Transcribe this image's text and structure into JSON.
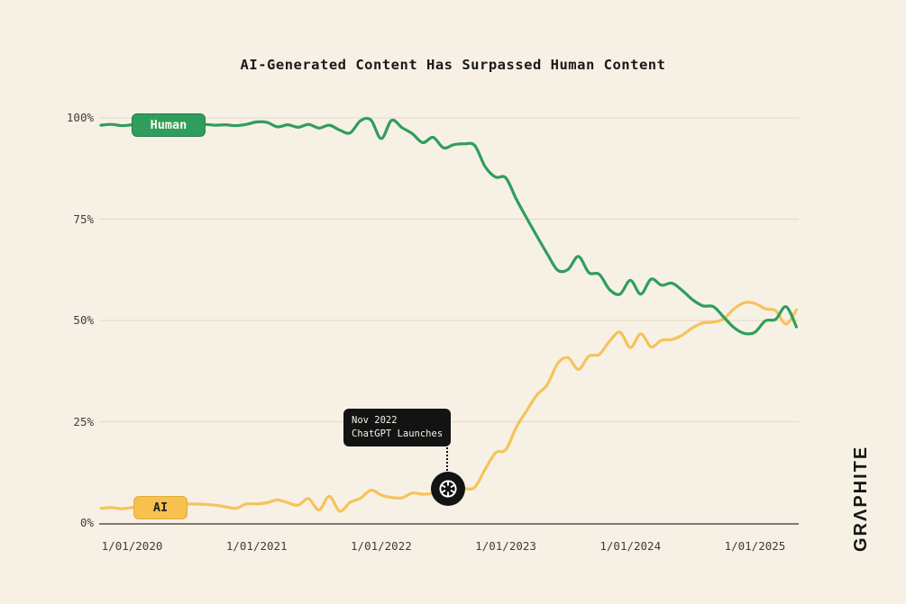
{
  "title": "AI-Generated Content Has Surpassed Human Content",
  "brand": "GRΛPHITE",
  "annotation": {
    "line1": "Nov 2022",
    "line2": "ChatGPT Launches",
    "icon": "openai-logo"
  },
  "colors": {
    "background": "#f7f1e5",
    "human": "#2f9e5c",
    "ai": "#f6c35a",
    "grid": "#e5ddca",
    "axis": "#55524a",
    "tooltip_bg": "#131313",
    "tick_text": "#3d3d3d"
  },
  "chart_data": {
    "type": "line",
    "title": "AI-Generated Content Has Surpassed Human Content",
    "xlabel": "",
    "ylabel": "",
    "ylim": [
      0,
      100
    ],
    "grid": "horizontal",
    "legend": "inline-badges",
    "x_unit": "month",
    "x_start": "2019-10",
    "x_end": "2025-05",
    "x_tick_labels": [
      "1/01/2020",
      "1/01/2021",
      "1/01/2022",
      "1/01/2023",
      "1/01/2024",
      "1/01/2025"
    ],
    "x_tick_indices": [
      3,
      15,
      27,
      39,
      51,
      63
    ],
    "y_tick_labels": [
      "100%",
      "75%",
      "50%",
      "25%",
      "0%"
    ],
    "y_tick_values": [
      100,
      75,
      50,
      25,
      0
    ],
    "series": [
      {
        "name": "Human",
        "color": "#2f9e5c",
        "values": [
          98.2,
          98.4,
          98.1,
          98.3,
          98.5,
          98.2,
          98.4,
          98.1,
          98.3,
          98.2,
          98.4,
          98.2,
          98.3,
          98.1,
          98.4,
          99.0,
          98.9,
          97.8,
          98.3,
          97.7,
          98.4,
          97.5,
          98.2,
          97.0,
          96.3,
          99.3,
          99.5,
          94.9,
          99.4,
          97.6,
          96.1,
          93.9,
          95.2,
          92.6,
          93.4,
          93.6,
          93.2,
          88.0,
          85.4,
          85.2,
          80.0,
          75.3,
          70.8,
          66.4,
          62.4,
          62.6,
          65.8,
          61.8,
          61.4,
          57.6,
          56.5,
          59.9,
          56.5,
          60.2,
          58.7,
          59.2,
          57.4,
          55.1,
          53.6,
          53.4,
          50.8,
          48.2,
          46.8,
          47.1,
          49.9,
          50.3,
          53.4,
          48.4
        ]
      },
      {
        "name": "AI",
        "color": "#f6c35a",
        "values": [
          3.6,
          3.8,
          3.5,
          3.8,
          3.6,
          3.9,
          3.7,
          3.9,
          4.6,
          4.7,
          4.6,
          4.4,
          4.0,
          3.6,
          4.7,
          4.7,
          5.0,
          5.7,
          5.0,
          4.4,
          6.0,
          3.2,
          6.6,
          2.9,
          5.1,
          6.1,
          8.1,
          6.9,
          6.3,
          6.2,
          7.4,
          7.1,
          7.3,
          7.5,
          8.6,
          8.5,
          8.8,
          13.2,
          17.3,
          18.1,
          23.6,
          27.7,
          31.6,
          34.2,
          39.4,
          40.8,
          37.9,
          41.2,
          41.6,
          44.9,
          47.1,
          43.3,
          46.7,
          43.5,
          45.1,
          45.3,
          46.4,
          48.2,
          49.4,
          49.6,
          50.4,
          52.9,
          54.4,
          54.2,
          52.9,
          52.4,
          49.1,
          52.6
        ]
      }
    ],
    "annotation_point": {
      "series": "AI",
      "month": "2022-11",
      "label": "Nov 2022 ChatGPT Launches"
    }
  }
}
